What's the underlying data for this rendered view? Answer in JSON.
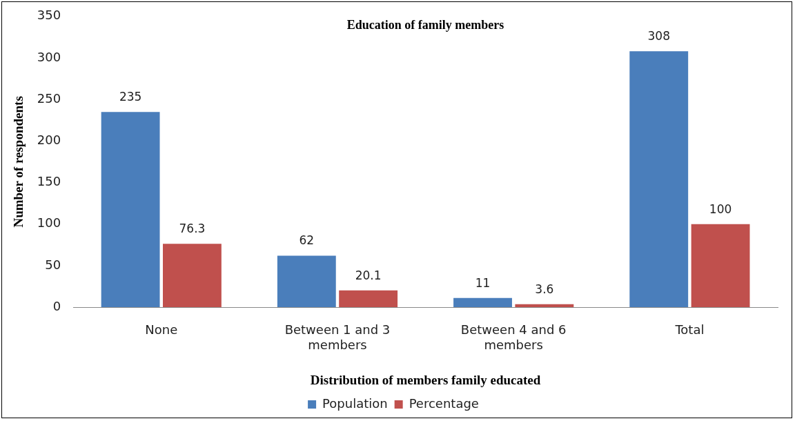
{
  "chart_data": {
    "type": "bar",
    "title": "Education of family members",
    "xlabel": "Distribution of members family educated",
    "ylabel": "Number of respondents",
    "categories": [
      "None",
      "Between 1 and 3 members",
      "Between 4 and 6 members",
      "Total"
    ],
    "series": [
      {
        "name": "Population",
        "color": "#4a7ebb",
        "values": [
          235,
          62,
          11,
          308
        ]
      },
      {
        "name": "Percentage",
        "color": "#c0504d",
        "values": [
          76.3,
          20.1,
          3.6,
          100
        ]
      }
    ],
    "ylim": [
      0,
      350
    ],
    "yticks": [
      0,
      50,
      100,
      150,
      200,
      250,
      300,
      350
    ],
    "grid": false,
    "legend": "bottom",
    "data_labels": true
  }
}
